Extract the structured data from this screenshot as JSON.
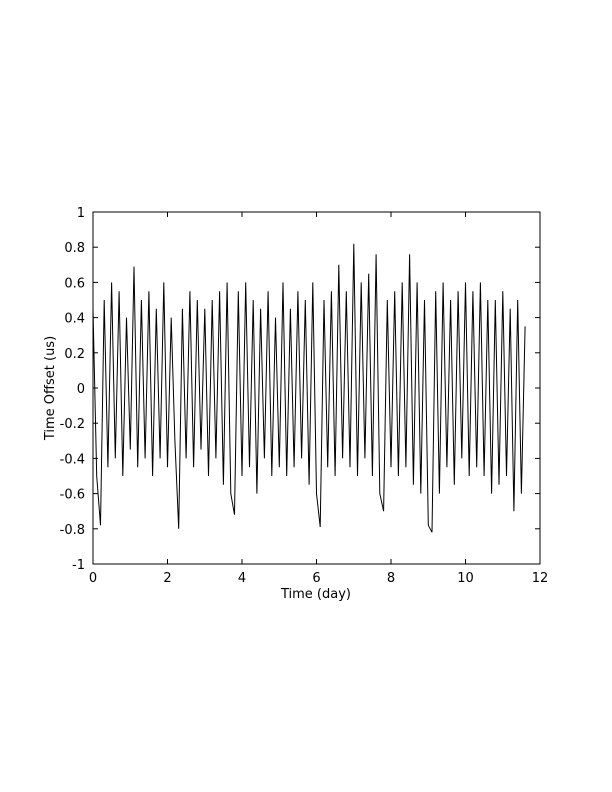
{
  "chart_data": {
    "type": "line",
    "title": "",
    "xlabel": "Time (day)",
    "ylabel": "Time Offset (us)",
    "xlim": [
      0,
      12
    ],
    "ylim": [
      -1,
      1
    ],
    "xticks": [
      "0",
      "2",
      "4",
      "6",
      "8",
      "10",
      "12"
    ],
    "yticks": [
      "-1",
      "-0.8",
      "-0.6",
      "-0.4",
      "-0.2",
      "0",
      "0.2",
      "0.4",
      "0.6",
      "0.8",
      "1"
    ],
    "grid": false,
    "line_color": "#000000",
    "series": [
      {
        "points": [
          [
            0.0,
            0.45
          ],
          [
            0.1,
            -0.5
          ],
          [
            0.2,
            -0.78
          ],
          [
            0.3,
            0.5
          ],
          [
            0.4,
            -0.45
          ],
          [
            0.5,
            0.6
          ],
          [
            0.6,
            -0.4
          ],
          [
            0.7,
            0.55
          ],
          [
            0.8,
            -0.5
          ],
          [
            0.9,
            0.4
          ],
          [
            1.0,
            -0.35
          ],
          [
            1.1,
            0.69
          ],
          [
            1.2,
            -0.45
          ],
          [
            1.3,
            0.5
          ],
          [
            1.4,
            -0.4
          ],
          [
            1.5,
            0.55
          ],
          [
            1.6,
            -0.5
          ],
          [
            1.7,
            0.45
          ],
          [
            1.8,
            -0.4
          ],
          [
            1.9,
            0.6
          ],
          [
            2.0,
            -0.45
          ],
          [
            2.1,
            0.4
          ],
          [
            2.2,
            -0.3
          ],
          [
            2.3,
            -0.8
          ],
          [
            2.4,
            0.45
          ],
          [
            2.5,
            -0.4
          ],
          [
            2.6,
            0.55
          ],
          [
            2.7,
            -0.45
          ],
          [
            2.8,
            0.5
          ],
          [
            2.9,
            -0.35
          ],
          [
            3.0,
            0.45
          ],
          [
            3.1,
            -0.5
          ],
          [
            3.2,
            0.5
          ],
          [
            3.3,
            -0.4
          ],
          [
            3.4,
            0.55
          ],
          [
            3.5,
            -0.55
          ],
          [
            3.6,
            0.6
          ],
          [
            3.7,
            -0.6
          ],
          [
            3.8,
            -0.72
          ],
          [
            3.9,
            0.55
          ],
          [
            4.0,
            -0.5
          ],
          [
            4.1,
            0.6
          ],
          [
            4.2,
            -0.45
          ],
          [
            4.3,
            0.5
          ],
          [
            4.4,
            -0.6
          ],
          [
            4.5,
            0.45
          ],
          [
            4.6,
            -0.4
          ],
          [
            4.7,
            0.55
          ],
          [
            4.8,
            -0.5
          ],
          [
            4.9,
            0.4
          ],
          [
            5.0,
            -0.45
          ],
          [
            5.1,
            0.6
          ],
          [
            5.2,
            -0.5
          ],
          [
            5.3,
            0.45
          ],
          [
            5.4,
            -0.45
          ],
          [
            5.5,
            0.55
          ],
          [
            5.6,
            -0.4
          ],
          [
            5.7,
            0.5
          ],
          [
            5.8,
            -0.55
          ],
          [
            5.9,
            0.6
          ],
          [
            6.0,
            -0.6
          ],
          [
            6.1,
            -0.79
          ],
          [
            6.2,
            0.5
          ],
          [
            6.3,
            -0.45
          ],
          [
            6.4,
            0.55
          ],
          [
            6.5,
            -0.5
          ],
          [
            6.6,
            0.7
          ],
          [
            6.7,
            -0.4
          ],
          [
            6.8,
            0.55
          ],
          [
            6.9,
            -0.45
          ],
          [
            7.0,
            0.82
          ],
          [
            7.1,
            -0.5
          ],
          [
            7.2,
            0.6
          ],
          [
            7.3,
            -0.4
          ],
          [
            7.4,
            0.65
          ],
          [
            7.5,
            -0.5
          ],
          [
            7.6,
            0.76
          ],
          [
            7.7,
            -0.6
          ],
          [
            7.8,
            -0.7
          ],
          [
            7.9,
            0.5
          ],
          [
            8.0,
            -0.45
          ],
          [
            8.1,
            0.55
          ],
          [
            8.2,
            -0.5
          ],
          [
            8.3,
            0.6
          ],
          [
            8.4,
            -0.45
          ],
          [
            8.5,
            0.76
          ],
          [
            8.6,
            -0.55
          ],
          [
            8.7,
            0.6
          ],
          [
            8.8,
            -0.6
          ],
          [
            8.9,
            0.5
          ],
          [
            9.0,
            -0.78
          ],
          [
            9.1,
            -0.82
          ],
          [
            9.2,
            0.55
          ],
          [
            9.3,
            -0.6
          ],
          [
            9.4,
            0.6
          ],
          [
            9.5,
            -0.45
          ],
          [
            9.6,
            0.5
          ],
          [
            9.7,
            -0.55
          ],
          [
            9.8,
            0.55
          ],
          [
            9.9,
            -0.4
          ],
          [
            10.0,
            0.6
          ],
          [
            10.1,
            -0.5
          ],
          [
            10.2,
            0.55
          ],
          [
            10.3,
            -0.45
          ],
          [
            10.4,
            0.6
          ],
          [
            10.5,
            -0.5
          ],
          [
            10.6,
            0.5
          ],
          [
            10.7,
            -0.6
          ],
          [
            10.8,
            0.5
          ],
          [
            10.9,
            -0.55
          ],
          [
            11.0,
            0.55
          ],
          [
            11.1,
            -0.5
          ],
          [
            11.2,
            0.45
          ],
          [
            11.3,
            -0.7
          ],
          [
            11.4,
            0.5
          ],
          [
            11.5,
            -0.6
          ],
          [
            11.6,
            0.35
          ]
        ]
      }
    ]
  }
}
